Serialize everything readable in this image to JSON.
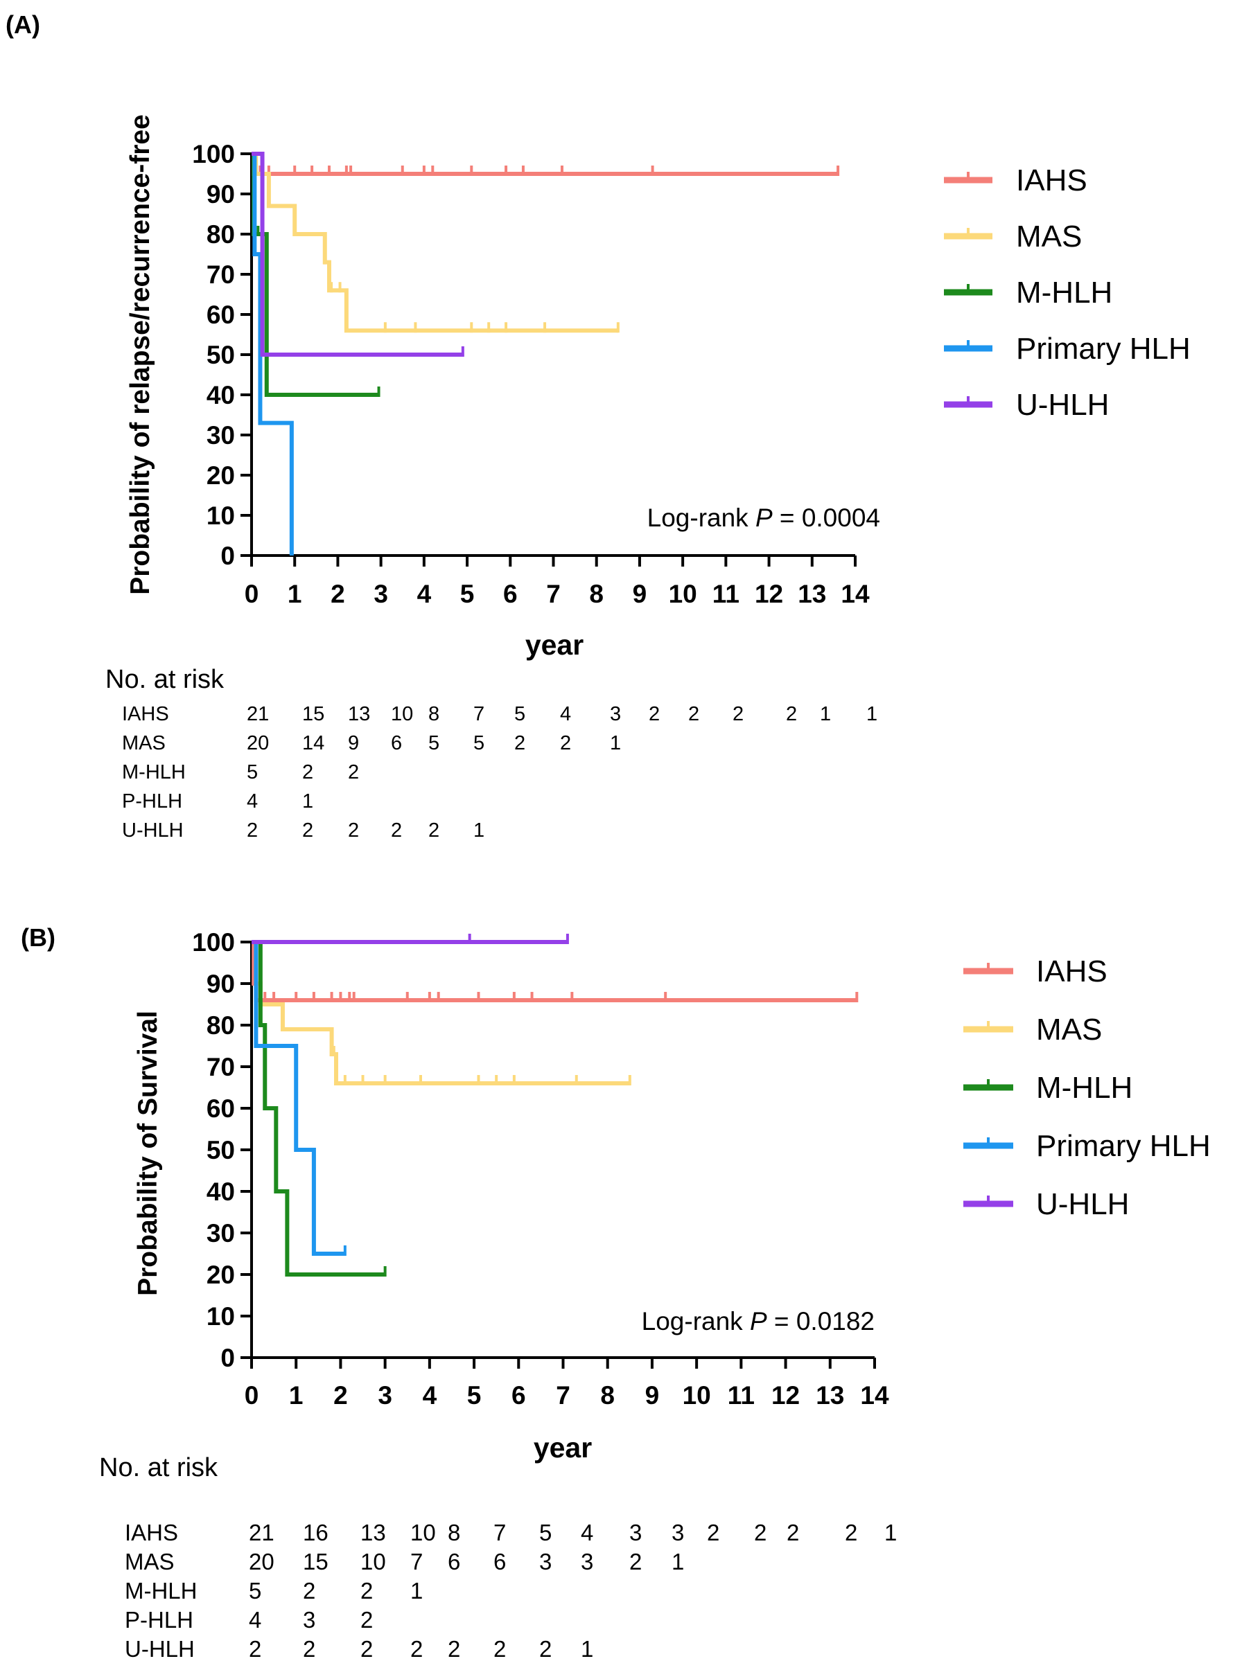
{
  "colors": {
    "IAHS": "#f47f78",
    "MAS": "#fcd97a",
    "M-HLH": "#1d8a1d",
    "Primary HLH": "#1e96ef",
    "U-HLH": "#9440e8"
  },
  "chart_data": [
    {
      "type": "line",
      "panel_label": "(A)",
      "ylabel": "Probability of relapse/recurrence-free",
      "xlabel": "year",
      "xlim": [
        0,
        14
      ],
      "ylim": [
        0,
        100
      ],
      "x_ticks": [
        "0",
        "1",
        "2",
        "3",
        "4",
        "5",
        "6",
        "7",
        "8",
        "9",
        "10",
        "11",
        "12",
        "13",
        "14"
      ],
      "y_ticks": [
        "0",
        "10",
        "20",
        "30",
        "40",
        "50",
        "60",
        "70",
        "80",
        "90",
        "100"
      ],
      "annotation": {
        "prefix": "Log-rank ",
        "p": "P",
        "suffix": " = 0.0004"
      },
      "legend": [
        "IAHS",
        "MAS",
        "M-HLH",
        "Primary HLH",
        "U-HLH"
      ],
      "series": [
        {
          "name": "IAHS",
          "steps": [
            [
              0,
              100
            ],
            [
              0.05,
              95
            ],
            [
              13.6,
              95
            ]
          ],
          "censors": [
            0.2,
            0.4,
            1.0,
            1.4,
            1.8,
            2.2,
            2.3,
            3.5,
            4.0,
            4.2,
            5.1,
            5.9,
            6.3,
            7.2,
            9.3,
            13.6
          ]
        },
        {
          "name": "MAS",
          "steps": [
            [
              0,
              100
            ],
            [
              0.1,
              95
            ],
            [
              0.4,
              87
            ],
            [
              1.0,
              80
            ],
            [
              1.7,
              73
            ],
            [
              1.8,
              66
            ],
            [
              2.2,
              56
            ],
            [
              8.5,
              56
            ]
          ],
          "censors": [
            1.7,
            1.85,
            2.05,
            3.1,
            3.8,
            5.1,
            5.5,
            5.9,
            6.8,
            8.5
          ]
        },
        {
          "name": "M-HLH",
          "steps": [
            [
              0,
              100
            ],
            [
              0.05,
              80
            ],
            [
              0.35,
              40
            ],
            [
              2.95,
              40
            ]
          ],
          "censors": [
            0.15,
            2.95
          ]
        },
        {
          "name": "Primary HLH",
          "steps": [
            [
              0,
              100
            ],
            [
              0.07,
              75
            ],
            [
              0.2,
              33
            ],
            [
              0.93,
              0
            ],
            [
              0.93,
              0
            ]
          ],
          "censors": []
        },
        {
          "name": "U-HLH",
          "steps": [
            [
              0,
              100
            ],
            [
              0.25,
              50
            ],
            [
              4.9,
              50
            ]
          ],
          "censors": [
            0.25,
            4.9
          ]
        }
      ],
      "risk_table": {
        "title": "No. at risk",
        "rows": [
          {
            "label": "IAHS",
            "values": [
              "21",
              "15",
              "13",
              "10",
              "8",
              "7",
              "5",
              "4",
              "3",
              "2",
              "2",
              "2",
              "2",
              "1",
              "1"
            ]
          },
          {
            "label": "MAS",
            "values": [
              "20",
              "14",
              "9",
              "6",
              "5",
              "5",
              "2",
              "2",
              "1"
            ]
          },
          {
            "label": "M-HLH",
            "values": [
              "5",
              "2",
              "2"
            ]
          },
          {
            "label": "P-HLH",
            "values": [
              "4",
              "1"
            ]
          },
          {
            "label": "U-HLH",
            "values": [
              "2",
              "2",
              "2",
              "2",
              "2",
              "1"
            ]
          }
        ]
      }
    },
    {
      "type": "line",
      "panel_label": "(B)",
      "ylabel": "Probability of Survival",
      "xlabel": "year",
      "xlim": [
        0,
        14
      ],
      "ylim": [
        0,
        100
      ],
      "x_ticks": [
        "0",
        "1",
        "2",
        "3",
        "4",
        "5",
        "6",
        "7",
        "8",
        "9",
        "10",
        "11",
        "12",
        "13",
        "14"
      ],
      "y_ticks": [
        "0",
        "10",
        "20",
        "30",
        "40",
        "50",
        "60",
        "70",
        "80",
        "90",
        "100"
      ],
      "annotation": {
        "prefix": "Log-rank ",
        "p": "P",
        "suffix": " = 0.0182"
      },
      "legend": [
        "IAHS",
        "MAS",
        "M-HLH",
        "Primary HLH",
        "U-HLH"
      ],
      "series": [
        {
          "name": "IAHS",
          "steps": [
            [
              0,
              100
            ],
            [
              0.05,
              90
            ],
            [
              0.1,
              86
            ],
            [
              13.6,
              86
            ]
          ],
          "censors": [
            0.3,
            0.5,
            1.0,
            1.4,
            1.8,
            2.0,
            2.2,
            2.3,
            3.5,
            4.0,
            4.2,
            5.1,
            5.9,
            6.3,
            7.2,
            9.3,
            13.6
          ]
        },
        {
          "name": "MAS",
          "steps": [
            [
              0,
              100
            ],
            [
              0.1,
              90
            ],
            [
              0.2,
              85
            ],
            [
              0.7,
              79
            ],
            [
              1.8,
              73
            ],
            [
              1.9,
              66
            ],
            [
              8.5,
              66
            ]
          ],
          "censors": [
            1.85,
            2.1,
            2.5,
            3.0,
            3.8,
            5.1,
            5.5,
            5.9,
            7.3,
            8.5
          ]
        },
        {
          "name": "M-HLH",
          "steps": [
            [
              0,
              100
            ],
            [
              0.2,
              80
            ],
            [
              0.3,
              60
            ],
            [
              0.55,
              40
            ],
            [
              0.8,
              20
            ],
            [
              3.0,
              20
            ]
          ],
          "censors": [
            0.2,
            3.0
          ]
        },
        {
          "name": "Primary HLH",
          "steps": [
            [
              0,
              100
            ],
            [
              0.1,
              75
            ],
            [
              1.0,
              50
            ],
            [
              1.4,
              25
            ],
            [
              2.1,
              25
            ]
          ],
          "censors": [
            2.1
          ]
        },
        {
          "name": "U-HLH",
          "steps": [
            [
              0,
              100
            ],
            [
              7.1,
              100
            ]
          ],
          "censors": [
            4.9,
            7.1
          ]
        }
      ],
      "risk_table": {
        "title": "No. at risk",
        "rows": [
          {
            "label": "IAHS",
            "values": [
              "21",
              "16",
              "13",
              "10",
              "8",
              "7",
              "5",
              "4",
              "3",
              "3",
              "2",
              "2",
              "2",
              "2",
              "1"
            ]
          },
          {
            "label": "MAS",
            "values": [
              "20",
              "15",
              "10",
              "7",
              "6",
              "6",
              "3",
              "3",
              "2",
              "1"
            ]
          },
          {
            "label": "M-HLH",
            "values": [
              "5",
              "2",
              "2",
              "1"
            ]
          },
          {
            "label": "P-HLH",
            "values": [
              "4",
              "3",
              "2"
            ]
          },
          {
            "label": "U-HLH",
            "values": [
              "2",
              "2",
              "2",
              "2",
              "2",
              "2",
              "2",
              "1"
            ]
          }
        ]
      }
    }
  ]
}
